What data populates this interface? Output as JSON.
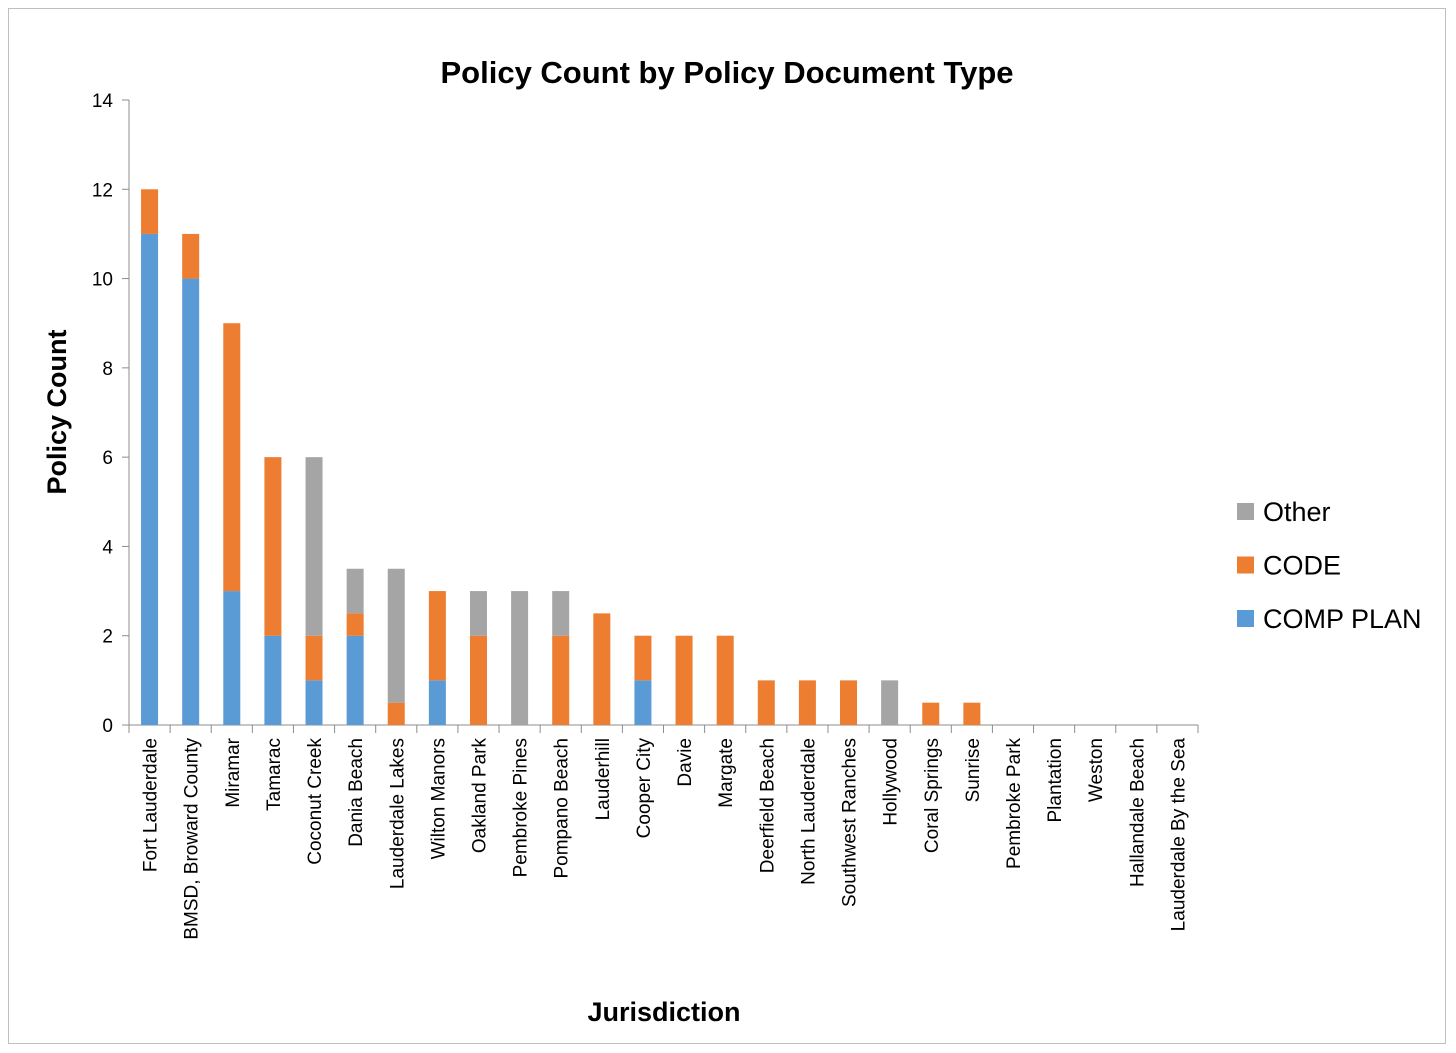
{
  "chart_data": {
    "type": "bar",
    "stacked": true,
    "title": "Policy Count by Policy Document Type",
    "xlabel": "Jurisdiction",
    "ylabel": "Policy Count",
    "ylim": [
      0,
      14
    ],
    "yticks": [
      "0",
      "2",
      "4",
      "6",
      "8",
      "10",
      "12",
      "14"
    ],
    "grid": false,
    "legend_position": "right",
    "categories": [
      "Fort Lauderdale",
      "BMSD, Broward County",
      "Miramar",
      "Tamarac",
      "Coconut Creek",
      "Dania Beach",
      "Lauderdale Lakes",
      "Wilton Manors",
      "Oakland Park",
      "Pembroke Pines",
      "Pompano Beach",
      "Lauderhill",
      "Cooper City",
      "Davie",
      "Margate",
      "Deerfield Beach",
      "North Lauderdale",
      "Southwest Ranches",
      "Hollywood",
      "Coral Springs",
      "Sunrise",
      "Pembroke Park",
      "Plantation",
      "Weston",
      "Hallandale Beach",
      "Lauderdale By the Sea"
    ],
    "series": [
      {
        "name": "COMP PLAN",
        "color": "#5b9bd5",
        "values": [
          11,
          10,
          3,
          2,
          1,
          2,
          0,
          1,
          0,
          0,
          0,
          0,
          1,
          0,
          0,
          0,
          0,
          0,
          0,
          0,
          0,
          0,
          0,
          0,
          0,
          0
        ]
      },
      {
        "name": "CODE",
        "color": "#ed7d31",
        "values": [
          1,
          1,
          6,
          4,
          1,
          0.5,
          0.5,
          2,
          2,
          0,
          2,
          2.5,
          1,
          2,
          2,
          1,
          1,
          1,
          0,
          0.5,
          0.5,
          0,
          0,
          0,
          0,
          0
        ]
      },
      {
        "name": "Other",
        "color": "#a5a5a5",
        "values": [
          0,
          0,
          0,
          0,
          4,
          1,
          3,
          0,
          1,
          3,
          1,
          0,
          0,
          0,
          0,
          0,
          0,
          0,
          1,
          0,
          0,
          0,
          0,
          0,
          0,
          0
        ]
      }
    ],
    "legend_order": [
      "Other",
      "CODE",
      "COMP PLAN"
    ]
  }
}
